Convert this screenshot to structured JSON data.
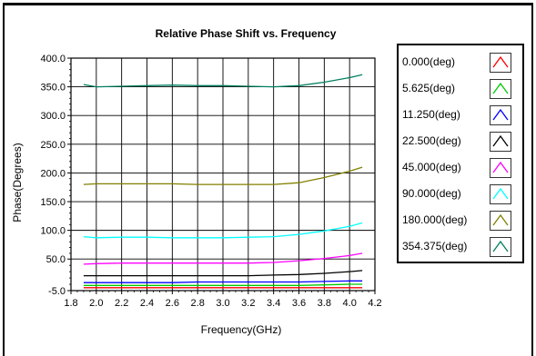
{
  "chart_data": {
    "type": "line",
    "title": "Relative Phase Shift vs. Frequency",
    "xlabel": "Frequency(GHz)",
    "ylabel": "Phase(Degrees)",
    "xlim": [
      1.8,
      4.2
    ],
    "ylim": [
      -5,
      400
    ],
    "x_ticks": [
      "1.8",
      "2.0",
      "2.2",
      "2.4",
      "2.6",
      "2.8",
      "3.0",
      "3.2",
      "3.4",
      "3.6",
      "3.8",
      "4.0",
      "4.2"
    ],
    "y_ticks": [
      "-5.0",
      "50.0",
      "100.0",
      "150.0",
      "200.0",
      "250.0",
      "300.0",
      "350.0",
      "400.0"
    ],
    "grid": true,
    "legend_position": "right",
    "x": [
      1.9,
      2.0,
      2.2,
      2.4,
      2.6,
      2.8,
      3.0,
      3.2,
      3.4,
      3.6,
      3.8,
      4.0,
      4.1
    ],
    "series": [
      {
        "name": "0.000(deg)",
        "color": "#ff0000",
        "values": [
          0,
          0,
          0,
          0,
          0,
          0,
          0,
          0,
          0,
          0,
          0,
          0,
          0
        ]
      },
      {
        "name": "5.625(deg)",
        "color": "#00cc00",
        "values": [
          4,
          4,
          4,
          4,
          4,
          4,
          4,
          4,
          4,
          4,
          5,
          6,
          6
        ]
      },
      {
        "name": "11.250(deg)",
        "color": "#0000ff",
        "values": [
          9,
          9,
          9,
          9,
          9,
          10,
          10,
          10,
          10,
          10,
          11,
          12,
          12
        ]
      },
      {
        "name": "22.500(deg)",
        "color": "#000000",
        "values": [
          21,
          21,
          21,
          21,
          21,
          21,
          21,
          21,
          22,
          23,
          25,
          28,
          30
        ]
      },
      {
        "name": "45.000(deg)",
        "color": "#ff00ff",
        "values": [
          41,
          42,
          43,
          43,
          43,
          43,
          43,
          43,
          44,
          47,
          51,
          56,
          60
        ]
      },
      {
        "name": "90.000(deg)",
        "color": "#00ffff",
        "values": [
          89,
          87,
          88,
          88,
          87,
          87,
          87,
          88,
          89,
          93,
          99,
          107,
          113
        ]
      },
      {
        "name": "180.000(deg)",
        "color": "#808000",
        "values": [
          180,
          181,
          181,
          181,
          181,
          180,
          180,
          180,
          180,
          183,
          192,
          203,
          210
        ]
      },
      {
        "name": "354.375(deg)",
        "color": "#008060",
        "values": [
          354,
          350,
          351,
          352,
          353,
          352,
          352,
          351,
          350,
          352,
          358,
          366,
          371
        ]
      }
    ]
  }
}
